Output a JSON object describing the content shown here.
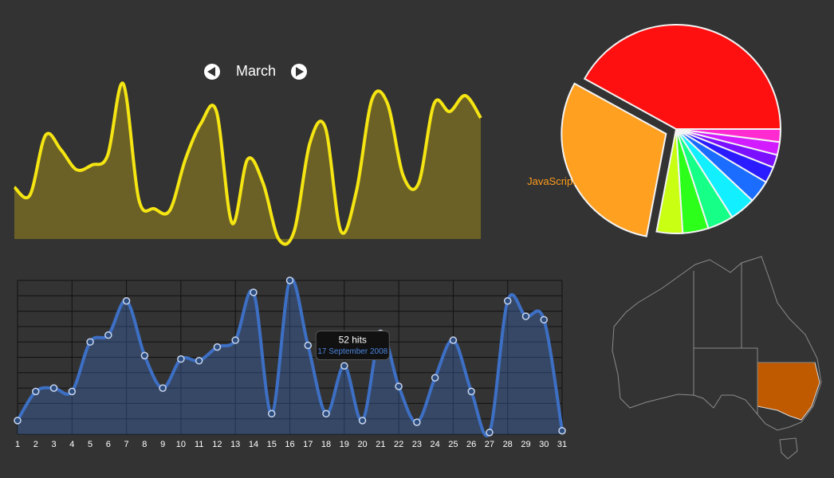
{
  "nav": {
    "month": "March"
  },
  "chart_data": [
    {
      "type": "area",
      "color": "#f5e512",
      "fill": "#6b6126",
      "values": [
        32.5,
        27.5,
        65,
        56,
        43.5,
        46.5,
        52.5,
        97.5,
        25,
        19,
        18,
        50,
        72.5,
        80,
        10,
        50,
        35,
        0,
        5,
        60,
        70,
        5,
        30,
        87.5,
        85,
        40,
        35,
        85,
        80,
        90,
        76
      ],
      "ylim": [
        0,
        100
      ]
    },
    {
      "type": "pie",
      "categories": [
        null,
        null,
        null,
        null,
        null,
        null,
        null,
        null,
        null,
        "JavaScript",
        null
      ],
      "values": [
        2,
        2,
        2,
        2.5,
        3.5,
        4,
        4,
        4,
        4,
        30,
        42
      ],
      "colors": [
        "#ff2bd0",
        "#d21cff",
        "#7a10ff",
        "#2a1cff",
        "#1a6dff",
        "#12f0ff",
        "#16ff86",
        "#2bff1a",
        "#c8ff12",
        "#ffa020",
        "#ff1010"
      ],
      "label_color": "#ff9c1a"
    },
    {
      "type": "line",
      "color": "#3d6fc4",
      "categories": [
        1,
        2,
        3,
        4,
        5,
        6,
        7,
        8,
        9,
        10,
        11,
        12,
        13,
        14,
        15,
        16,
        17,
        18,
        19,
        20,
        21,
        22,
        23,
        24,
        25,
        26,
        27,
        28,
        29,
        30,
        31
      ],
      "values": [
        8,
        25,
        27,
        25,
        54,
        58,
        78,
        46,
        27,
        44,
        43,
        51,
        55,
        83,
        12,
        90,
        52,
        12,
        40,
        8,
        59,
        28,
        7,
        33,
        55,
        25,
        1,
        78,
        69,
        67,
        2
      ],
      "ylim": [
        0,
        90
      ],
      "yticks": [
        0,
        9,
        18,
        27,
        36,
        45,
        54,
        63,
        72,
        81,
        90
      ],
      "grid": true,
      "tooltip": {
        "index": 16,
        "title": "52 hits",
        "subtitle": "17 September 2008"
      }
    }
  ]
}
